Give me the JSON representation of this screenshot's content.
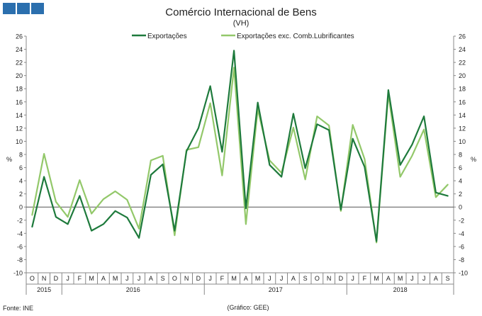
{
  "header": {
    "title": "Comércio Internacional de Bens",
    "subtitle": "(VH)"
  },
  "footer": {
    "source": "Fonte: INE",
    "credit": "(Gráfico: GEE)"
  },
  "colors": {
    "exportacoes": "#1e7a3c",
    "exportacoes_exc": "#93c86a",
    "logo": "#2b6fae"
  },
  "chart_data": {
    "type": "line",
    "title": "Comércio Internacional de Bens",
    "subtitle": "(VH)",
    "ylabel_left": "%",
    "ylabel_right": "%",
    "ylim": [
      -10,
      26
    ],
    "yticks": [
      -10,
      -8,
      -6,
      -4,
      -2,
      0,
      2,
      4,
      6,
      8,
      10,
      12,
      14,
      16,
      18,
      20,
      22,
      24,
      26
    ],
    "grid": false,
    "legend": "top-center",
    "categories": [
      "O",
      "N",
      "D",
      "J",
      "F",
      "M",
      "A",
      "M",
      "J",
      "J",
      "A",
      "S",
      "O",
      "N",
      "D",
      "J",
      "F",
      "M",
      "A",
      "M",
      "J",
      "J",
      "A",
      "S",
      "O",
      "N",
      "D",
      "J",
      "F",
      "M",
      "A",
      "M",
      "J",
      "J",
      "A",
      "S"
    ],
    "years": [
      {
        "label": "2015",
        "start": 0,
        "end": 2
      },
      {
        "label": "2016",
        "start": 3,
        "end": 14
      },
      {
        "label": "2017",
        "start": 15,
        "end": 26
      },
      {
        "label": "2018",
        "start": 27,
        "end": 35
      }
    ],
    "series": [
      {
        "name": "Exportações",
        "color": "#1e7a3c",
        "values": [
          -3.0,
          4.6,
          -1.5,
          -2.6,
          1.7,
          -3.6,
          -2.6,
          -0.6,
          -1.6,
          -4.7,
          4.9,
          6.5,
          -3.6,
          8.5,
          12.0,
          18.4,
          8.4,
          23.8,
          -0.2,
          15.9,
          6.4,
          4.6,
          14.2,
          5.9,
          12.6,
          11.7,
          -0.4,
          10.4,
          6.1,
          -5.2,
          17.8,
          6.4,
          9.5,
          13.8,
          2.2,
          1.7
        ]
      },
      {
        "name": "Exportações exc. Comb.Lubrificantes",
        "color": "#93c86a",
        "values": [
          -1.2,
          8.1,
          0.8,
          -1.5,
          4.1,
          -1.0,
          1.2,
          2.4,
          1.1,
          -3.3,
          7.1,
          7.8,
          -4.3,
          8.7,
          9.1,
          15.8,
          4.8,
          21.2,
          -2.6,
          14.9,
          7.1,
          5.2,
          12.1,
          4.2,
          13.8,
          12.4,
          -0.6,
          12.5,
          7.3,
          -5.4,
          17.2,
          4.6,
          7.8,
          11.8,
          1.5,
          3.4
        ]
      }
    ]
  }
}
